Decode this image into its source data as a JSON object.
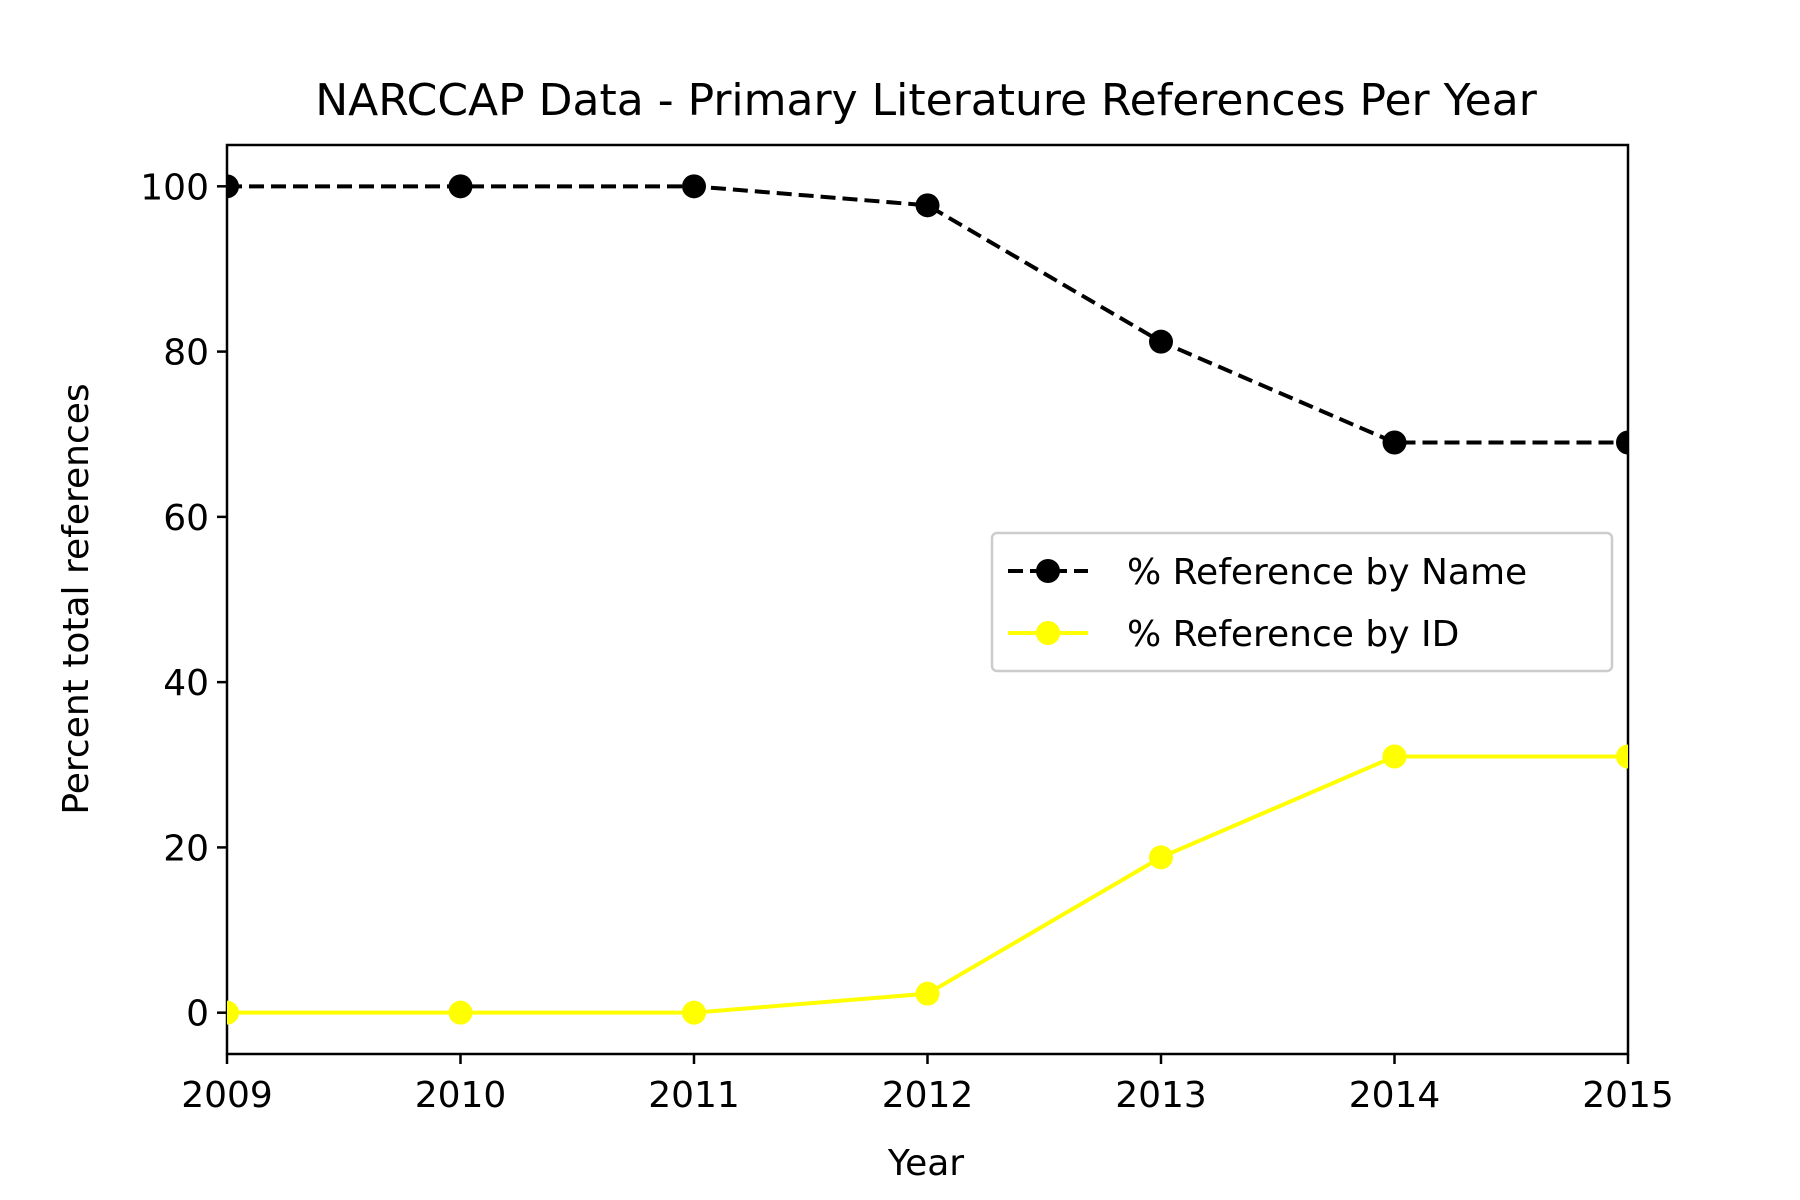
{
  "chart_data": {
    "type": "line",
    "title": "NARCCAP Data - Primary Literature References Per Year",
    "xlabel": "Year",
    "ylabel": "Percent total references",
    "x": [
      2009,
      2010,
      2011,
      2012,
      2013,
      2014,
      2015
    ],
    "xlim": [
      2009,
      2015
    ],
    "ylim": [
      -5,
      105
    ],
    "xticks": [
      "2009",
      "2010",
      "2011",
      "2012",
      "2013",
      "2014",
      "2015"
    ],
    "yticks": [
      0,
      20,
      40,
      60,
      80,
      100
    ],
    "ytick_labels": [
      "0",
      "20",
      "40",
      "60",
      "80",
      "100"
    ],
    "grid": false,
    "legend_position": "center-right",
    "series": [
      {
        "name": "% Reference by Name",
        "values": [
          100,
          100,
          100,
          97.7,
          81.2,
          69.0,
          69.0
        ],
        "color": "#000000",
        "line_style": "dashed",
        "marker": "circle"
      },
      {
        "name": "% Reference by ID",
        "values": [
          0,
          0,
          0,
          2.3,
          18.8,
          31.0,
          31.0
        ],
        "color": "#ffff00",
        "line_style": "solid",
        "marker": "circle"
      }
    ]
  }
}
